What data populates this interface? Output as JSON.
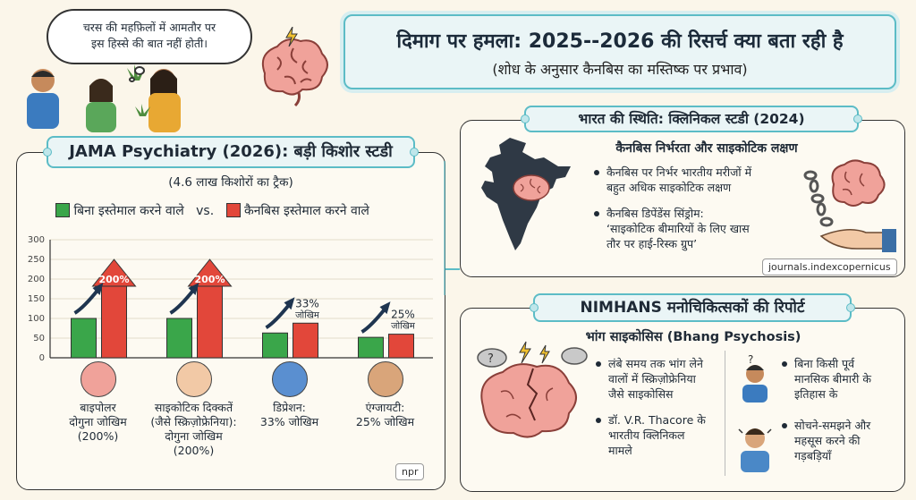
{
  "bubble": {
    "line1": "चरस की महफ़िलों में आमतौर पर",
    "line2": "इस हिस्से की बात नहीं होती।"
  },
  "header": {
    "title": "दिमाग पर हमला: 2025--2026 की रिसर्च क्या बता रही है",
    "subtitle": "(शोध के अनुसार कैनबिस का मस्तिष्क पर प्रभाव)"
  },
  "jama": {
    "title": "JAMA Psychiatry (2026): बड़ी किशोर स्टडी",
    "subtitle": "(4.6 लाख किशोरों का ट्रैक)",
    "legend_nonuser": "बिना इस्तेमाल करने वाले",
    "legend_vs": "vs.",
    "legend_user": "कैनबिस इस्तेमाल करने वाले",
    "colors": {
      "nonuser": "#3aa64a",
      "user": "#e2473a"
    },
    "credit": "npr"
  },
  "chart_data": {
    "type": "bar",
    "categories": [
      "बाइपोलर",
      "साइकोटिक दिक्कतें",
      "डिप्रेशन",
      "एंग्जायटी"
    ],
    "ylim": [
      0,
      300
    ],
    "yticks": [
      0,
      50,
      100,
      150,
      200,
      250,
      300
    ],
    "series": [
      {
        "values": [
          100,
          100,
          63,
          52
        ]
      },
      {
        "values": [
          200,
          200,
          88,
          60
        ]
      }
    ],
    "bar_labels": [
      "200%",
      "200%",
      "33%",
      "25%"
    ],
    "bar_sublabels": [
      "",
      "",
      "जोखिम",
      "जोखिम"
    ],
    "captions": [
      [
        "बाइपोलर",
        "दोगुना जोखिम",
        "(200%)"
      ],
      [
        "साइकोटिक दिक्कतें",
        "(जैसे स्क्रिज़ोफ्रेनिया):",
        "दोगुना जोखिम",
        "(200%)"
      ],
      [
        "डिप्रेशन:",
        "33% जोखिम"
      ],
      [
        "एंग्जायटी:",
        "25% जोखिम"
      ]
    ]
  },
  "india": {
    "title": "भारत की स्थिति: क्लिनिकल स्टडी (2024)",
    "subheading": "कैनबिस निर्भरता और साइकोटिक लक्षण",
    "bullet1_l1": "कैनबिस पर निर्भर भारतीय मरीजों में",
    "bullet1_l2": "बहुत अधिक साइकोटिक लक्षण",
    "bullet2_l1": "कैनबिस डिपेंडेंस सिंड्रोम:",
    "bullet2_l2": "‘साइकोटिक बीमारियों के लिए खास",
    "bullet2_l3": "तौर पर हाई-रिस्क ग्रुप’",
    "source": "journals.indexcopernicus"
  },
  "nimhans": {
    "title": "NIMHANS मनोचिकित्सकों की रिपोर्ट",
    "subheading": "भांग साइकोसिस (Bhang Psychosis)",
    "b1": [
      "लंबे समय तक भांग लेने",
      "वालों में स्क्रिज़ोफ्रेनिया",
      "जैसे साइकोसिस"
    ],
    "b2": [
      "डॉ. V.R. Thacore के",
      "भारतीय क्लिनिकल",
      "मामले"
    ],
    "b3": [
      "बिना किसी पूर्व",
      "मानसिक बीमारी के",
      "इतिहास के"
    ],
    "b4": [
      "सोचने-समझने और",
      "महसूस करने की",
      "गड़बड़ियाँ"
    ]
  }
}
